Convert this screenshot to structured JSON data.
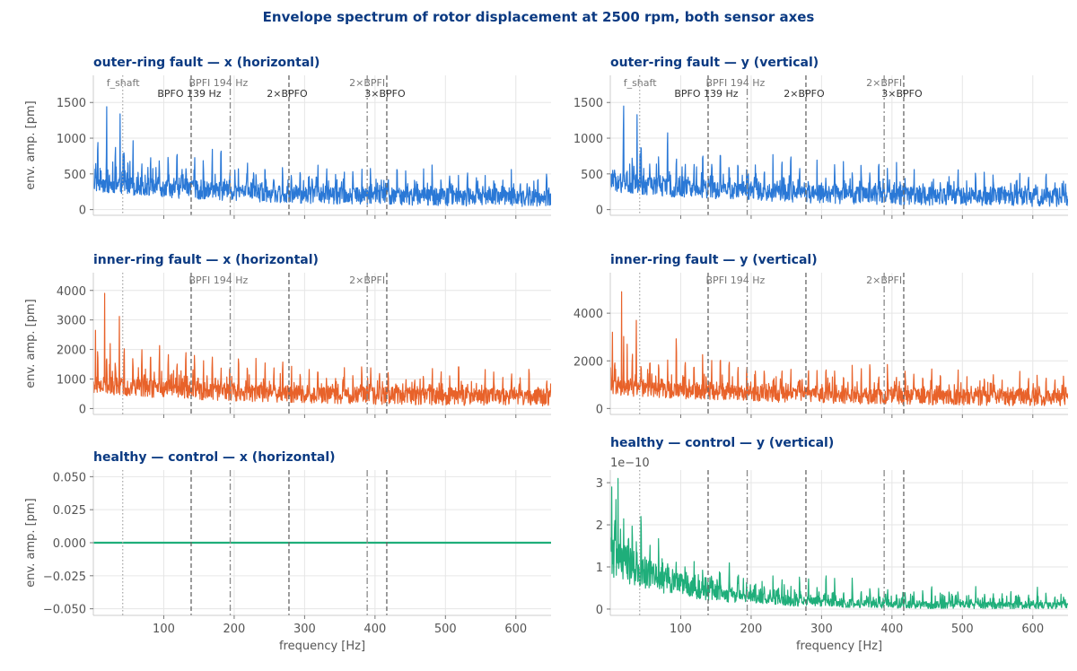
{
  "figure": {
    "title": "Envelope spectrum of rotor displacement at 2500 rpm, both sensor axes"
  },
  "style": {
    "title_color": "#0b3a82",
    "grid_color": "#e6e6e6",
    "axis_color": "#cccccc",
    "tick_text_color": "#555555",
    "marker_color": "#666666",
    "marker_label_color": "#555555",
    "blue": "#2a78d6",
    "orange": "#e8622a",
    "green": "#1fae7a"
  },
  "chart_data": [
    {
      "id": "outer-x",
      "type": "line",
      "title": "outer-ring fault — x (horizontal)",
      "xlabel": "",
      "ylabel": "env. amp. [pm]",
      "xlim": [
        0,
        650
      ],
      "ylim": [
        -80,
        1880
      ],
      "yticks": [
        0,
        500,
        1000,
        1500
      ],
      "ytick_labels": [
        "0",
        "500",
        "1000",
        "1500"
      ],
      "xticks": [
        100,
        200,
        300,
        400,
        500,
        600
      ],
      "xtick_labels": [],
      "scale_text": "",
      "color": "#2a78d6",
      "show_marker_labels": true,
      "spectrum": {
        "base": 380,
        "tail": 160,
        "decay": 220,
        "noise": 130,
        "peak_height": 620,
        "spike_prob": 0.22,
        "spike_height": 260,
        "peaks": [
          [
            19,
            1440
          ],
          [
            38,
            1340
          ],
          [
            42,
            780
          ]
        ],
        "floor": 30
      },
      "markers": [
        {
          "x": 41.7,
          "style": "dotted",
          "label": "f_shaft",
          "row": 0
        },
        {
          "x": 138.9,
          "style": "dashed",
          "label": "BPFO 139 Hz",
          "row": 1
        },
        {
          "x": 194.4,
          "style": "dashdot",
          "label": "BPFI 194 Hz",
          "row": 0
        },
        {
          "x": 277.8,
          "style": "dashed",
          "label": "2×BPFO",
          "row": 1
        },
        {
          "x": 388.9,
          "style": "dashdot",
          "label": "2×BPFI",
          "row": 0
        },
        {
          "x": 416.7,
          "style": "dashed",
          "label": "3×BPFO",
          "row": 1
        }
      ]
    },
    {
      "id": "outer-y",
      "type": "line",
      "title": "outer-ring fault — y (vertical)",
      "xlabel": "",
      "ylabel": "",
      "xlim": [
        0,
        650
      ],
      "ylim": [
        -80,
        1880
      ],
      "yticks": [
        0,
        500,
        1000,
        1500
      ],
      "ytick_labels": [
        "0",
        "500",
        "1000",
        "1500"
      ],
      "xticks": [
        100,
        200,
        300,
        400,
        500,
        600
      ],
      "xtick_labels": [],
      "scale_text": "",
      "color": "#2a78d6",
      "show_marker_labels": true,
      "spectrum": {
        "base": 380,
        "tail": 160,
        "decay": 220,
        "noise": 130,
        "peak_height": 620,
        "spike_prob": 0.22,
        "spike_height": 260,
        "peaks": [
          [
            19,
            1450
          ],
          [
            38,
            1330
          ],
          [
            42,
            780
          ]
        ],
        "floor": 30
      },
      "markers": [
        {
          "x": 41.7,
          "style": "dotted",
          "label": "f_shaft",
          "row": 0
        },
        {
          "x": 138.9,
          "style": "dashed",
          "label": "BPFO 139 Hz",
          "row": 1
        },
        {
          "x": 194.4,
          "style": "dashdot",
          "label": "BPFI 194 Hz",
          "row": 0
        },
        {
          "x": 277.8,
          "style": "dashed",
          "label": "2×BPFO",
          "row": 1
        },
        {
          "x": 388.9,
          "style": "dashdot",
          "label": "2×BPFI",
          "row": 0
        },
        {
          "x": 416.7,
          "style": "dashed",
          "label": "3×BPFO",
          "row": 1
        }
      ]
    },
    {
      "id": "inner-x",
      "type": "line",
      "title": "inner-ring fault — x (horizontal)",
      "xlabel": "",
      "ylabel": "env. amp. [pm]",
      "xlim": [
        0,
        650
      ],
      "ylim": [
        -200,
        4600
      ],
      "yticks": [
        0,
        1000,
        2000,
        3000,
        4000
      ],
      "ytick_labels": [
        "0",
        "1000",
        "2000",
        "3000",
        "4000"
      ],
      "xticks": [
        100,
        200,
        300,
        400,
        500,
        600
      ],
      "xtick_labels": [],
      "scale_text": "",
      "color": "#e8622a",
      "show_marker_labels": true,
      "spectrum": {
        "base": 800,
        "tail": 350,
        "decay": 250,
        "noise": 300,
        "peak_height": 1500,
        "spike_prob": 0.22,
        "spike_height": 600,
        "peaks": [
          [
            3,
            2650
          ],
          [
            16,
            3900
          ],
          [
            37,
            3120
          ],
          [
            24,
            2200
          ]
        ],
        "floor": 40
      },
      "markers": [
        {
          "x": 41.7,
          "style": "dotted",
          "label": "",
          "row": 0
        },
        {
          "x": 138.9,
          "style": "dashed",
          "label": "",
          "row": 1
        },
        {
          "x": 194.4,
          "style": "dashdot",
          "label": "BPFI 194 Hz",
          "row": 0
        },
        {
          "x": 277.8,
          "style": "dashed",
          "label": "",
          "row": 1
        },
        {
          "x": 388.9,
          "style": "dashdot",
          "label": "2×BPFI",
          "row": 0
        },
        {
          "x": 416.7,
          "style": "dashed",
          "label": "",
          "row": 1
        }
      ]
    },
    {
      "id": "inner-y",
      "type": "line",
      "title": "inner-ring fault — y (vertical)",
      "xlabel": "",
      "ylabel": "",
      "xlim": [
        0,
        650
      ],
      "ylim": [
        -250,
        5700
      ],
      "yticks": [
        0,
        2000,
        4000
      ],
      "ytick_labels": [
        "0",
        "2000",
        "4000"
      ],
      "xticks": [
        100,
        200,
        300,
        400,
        500,
        600
      ],
      "xtick_labels": [],
      "scale_text": "",
      "color": "#e8622a",
      "show_marker_labels": true,
      "spectrum": {
        "base": 900,
        "tail": 400,
        "decay": 250,
        "noise": 330,
        "peak_height": 1700,
        "spike_prob": 0.22,
        "spike_height": 700,
        "peaks": [
          [
            3,
            3200
          ],
          [
            16,
            4900
          ],
          [
            37,
            3700
          ],
          [
            24,
            2700
          ]
        ],
        "floor": 40
      },
      "markers": [
        {
          "x": 41.7,
          "style": "dotted",
          "label": "",
          "row": 0
        },
        {
          "x": 138.9,
          "style": "dashed",
          "label": "",
          "row": 1
        },
        {
          "x": 194.4,
          "style": "dashdot",
          "label": "BPFI 194 Hz",
          "row": 0
        },
        {
          "x": 277.8,
          "style": "dashed",
          "label": "",
          "row": 1
        },
        {
          "x": 388.9,
          "style": "dashdot",
          "label": "2×BPFI",
          "row": 0
        },
        {
          "x": 416.7,
          "style": "dashed",
          "label": "",
          "row": 1
        }
      ]
    },
    {
      "id": "healthy-x",
      "type": "line",
      "title": "healthy — control — x (horizontal)",
      "xlabel": "frequency  [Hz]",
      "ylabel": "env. amp. [pm]",
      "xlim": [
        0,
        650
      ],
      "ylim": [
        -0.055,
        0.055
      ],
      "yticks": [
        -0.05,
        -0.025,
        0,
        0.025,
        0.05
      ],
      "ytick_labels": [
        "−0.050",
        "−0.025",
        "0.000",
        "0.025",
        "0.050"
      ],
      "xticks": [
        100,
        200,
        300,
        400,
        500,
        600
      ],
      "xtick_labels": [
        "100",
        "200",
        "300",
        "400",
        "500",
        "600"
      ],
      "scale_text": "",
      "color": "#1fae7a",
      "show_marker_labels": false,
      "flat_value": 0,
      "markers": [
        {
          "x": 41.7,
          "style": "dotted",
          "label": "",
          "row": 0
        },
        {
          "x": 138.9,
          "style": "dashed",
          "label": "",
          "row": 1
        },
        {
          "x": 194.4,
          "style": "dashdot",
          "label": "",
          "row": 0
        },
        {
          "x": 277.8,
          "style": "dashed",
          "label": "",
          "row": 1
        },
        {
          "x": 388.9,
          "style": "dashdot",
          "label": "",
          "row": 0
        },
        {
          "x": 416.7,
          "style": "dashed",
          "label": "",
          "row": 1
        }
      ]
    },
    {
      "id": "healthy-y",
      "type": "line",
      "title": "healthy — control — y (vertical)",
      "xlabel": "frequency  [Hz]",
      "ylabel": "",
      "xlim": [
        0,
        650
      ],
      "ylim": [
        -0.15,
        3.3
      ],
      "yticks": [
        0,
        1,
        2,
        3
      ],
      "ytick_labels": [
        "0",
        "1",
        "2",
        "3"
      ],
      "xticks": [
        100,
        200,
        300,
        400,
        500,
        600
      ],
      "xtick_labels": [
        "100",
        "200",
        "300",
        "400",
        "500",
        "600"
      ],
      "scale_text": "1e−10",
      "color": "#1fae7a",
      "show_marker_labels": false,
      "spectrum": {
        "base": 1.3,
        "tail": 0.08,
        "decay": 110,
        "noise": 0.55,
        "peak_height": 0.9,
        "spike_prob": 0.2,
        "spike_height": 0.6,
        "peaks": [
          [
            2,
            2.9
          ],
          [
            11,
            3.1
          ],
          [
            8,
            2.6
          ]
        ],
        "floor": 0.01,
        "noise_decay": true
      },
      "markers": [
        {
          "x": 41.7,
          "style": "dotted",
          "label": "",
          "row": 0
        },
        {
          "x": 138.9,
          "style": "dashed",
          "label": "",
          "row": 1
        },
        {
          "x": 194.4,
          "style": "dashdot",
          "label": "",
          "row": 0
        },
        {
          "x": 277.8,
          "style": "dashed",
          "label": "",
          "row": 1
        },
        {
          "x": 388.9,
          "style": "dashdot",
          "label": "",
          "row": 0
        },
        {
          "x": 416.7,
          "style": "dashed",
          "label": "",
          "row": 1
        }
      ]
    }
  ]
}
